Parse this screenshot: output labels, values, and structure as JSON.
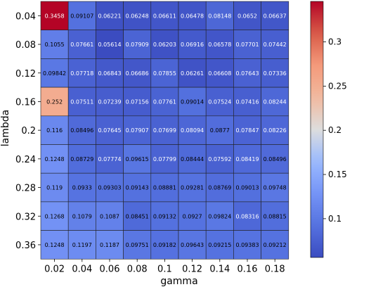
{
  "chart_data": {
    "type": "heatmap",
    "xlabel": "gamma",
    "ylabel": "lambda",
    "x_ticks": [
      "0.02",
      "0.04",
      "0.06",
      "0.08",
      "0.1",
      "0.12",
      "0.14",
      "0.16",
      "0.18"
    ],
    "y_ticks": [
      "0.04",
      "0.08",
      "0.12",
      "0.16",
      "0.2",
      "0.24",
      "0.28",
      "0.32",
      "0.36"
    ],
    "values": [
      [
        "0.3458",
        "0.09107",
        "0.06221",
        "0.06248",
        "0.06611",
        "0.06478",
        "0.08148",
        "0.0652",
        "0.06637"
      ],
      [
        "0.1055",
        "0.07661",
        "0.05614",
        "0.07909",
        "0.06203",
        "0.06916",
        "0.06578",
        "0.07701",
        "0.07442"
      ],
      [
        "0.09842",
        "0.07718",
        "0.06843",
        "0.06686",
        "0.07855",
        "0.06261",
        "0.06608",
        "0.07643",
        "0.07336"
      ],
      [
        "0.252",
        "0.07511",
        "0.07239",
        "0.07156",
        "0.07761",
        "0.09014",
        "0.07524",
        "0.07416",
        "0.08244"
      ],
      [
        "0.116",
        "0.08496",
        "0.07645",
        "0.07907",
        "0.07699",
        "0.08094",
        "0.0877",
        "0.07847",
        "0.08226"
      ],
      [
        "0.1248",
        "0.08729",
        "0.07774",
        "0.09615",
        "0.07799",
        "0.08444",
        "0.07592",
        "0.08419",
        "0.08496"
      ],
      [
        "0.119",
        "0.0933",
        "0.09303",
        "0.09143",
        "0.08881",
        "0.09281",
        "0.08769",
        "0.09013",
        "0.09748"
      ],
      [
        "0.1268",
        "0.1079",
        "0.1087",
        "0.08451",
        "0.09132",
        "0.0927",
        "0.09824",
        "0.08316",
        "0.08815"
      ],
      [
        "0.1248",
        "0.1197",
        "0.1187",
        "0.09751",
        "0.09182",
        "0.09643",
        "0.09215",
        "0.09383",
        "0.09212"
      ]
    ],
    "colorbar": {
      "colormap": "coolwarm",
      "vmin": 0.05614,
      "vmax": 0.3458,
      "ticks": [
        "0.1",
        "0.15",
        "0.2",
        "0.25",
        "0.3"
      ]
    }
  }
}
